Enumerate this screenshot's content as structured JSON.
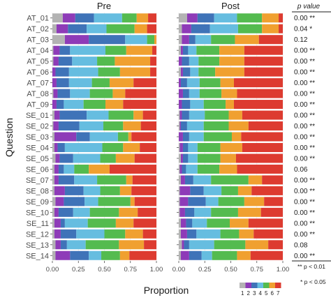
{
  "chart_data": {
    "type": "bar",
    "stacked": true,
    "orientation": "horizontal",
    "ylabel": "Question",
    "xlabel": "Proportion",
    "xlim": [
      0,
      1
    ],
    "x_ticks": [
      "0.00",
      "0.25",
      "0.50",
      "0.75",
      "1.00"
    ],
    "legend_labels": [
      "1",
      "2",
      "3",
      "4",
      "5",
      "6",
      "7"
    ],
    "colors": [
      "#b3b3b3",
      "#8e3bb8",
      "#3f73b8",
      "#66bde0",
      "#54bb4f",
      "#f0a030",
      "#dd3b30"
    ],
    "categories": [
      "AT_01",
      "AT_02",
      "AT_03",
      "AT_04",
      "AT_05",
      "AT_06",
      "AT_07",
      "AT_08",
      "AT_09",
      "SE_01",
      "SE_02",
      "SE_03",
      "SE_04",
      "SE_05",
      "SE_06",
      "SE_07",
      "SE_08",
      "SE_09",
      "SE_10",
      "SE_11",
      "SE_12",
      "SE_13",
      "SE_14"
    ],
    "panels": [
      {
        "title": "Pre",
        "rows": [
          [
            0.1,
            0.12,
            0.18,
            0.27,
            0.14,
            0.11,
            0.08
          ],
          [
            0.04,
            0.11,
            0.18,
            0.19,
            0.27,
            0.12,
            0.09
          ],
          [
            0.12,
            0.23,
            0.35,
            0.21,
            0.07,
            0.02,
            0.0
          ],
          [
            0.01,
            0.06,
            0.1,
            0.34,
            0.2,
            0.25,
            0.04
          ],
          [
            0.01,
            0.05,
            0.13,
            0.24,
            0.17,
            0.34,
            0.06
          ],
          [
            0.0,
            0.03,
            0.13,
            0.28,
            0.21,
            0.29,
            0.06
          ],
          [
            0.0,
            0.04,
            0.12,
            0.22,
            0.17,
            0.23,
            0.22
          ],
          [
            0.01,
            0.04,
            0.12,
            0.19,
            0.22,
            0.12,
            0.3
          ],
          [
            0.0,
            0.04,
            0.07,
            0.19,
            0.21,
            0.17,
            0.32
          ],
          [
            0.02,
            0.05,
            0.26,
            0.21,
            0.24,
            0.09,
            0.13
          ],
          [
            0.01,
            0.05,
            0.2,
            0.23,
            0.19,
            0.17,
            0.15
          ],
          [
            0.02,
            0.21,
            0.13,
            0.27,
            0.1,
            0.03,
            0.24
          ],
          [
            0.02,
            0.03,
            0.07,
            0.36,
            0.2,
            0.16,
            0.16
          ],
          [
            0.03,
            0.04,
            0.13,
            0.26,
            0.15,
            0.18,
            0.21
          ],
          [
            0.02,
            0.04,
            0.05,
            0.1,
            0.14,
            0.2,
            0.45
          ],
          [
            0.02,
            0.04,
            0.15,
            0.22,
            0.28,
            0.06,
            0.23
          ],
          [
            0.02,
            0.1,
            0.18,
            0.16,
            0.19,
            0.11,
            0.24
          ],
          [
            0.03,
            0.08,
            0.2,
            0.13,
            0.31,
            0.04,
            0.21
          ],
          [
            0.02,
            0.04,
            0.14,
            0.16,
            0.28,
            0.18,
            0.18
          ],
          [
            0.02,
            0.06,
            0.04,
            0.22,
            0.27,
            0.17,
            0.22
          ],
          [
            0.02,
            0.06,
            0.15,
            0.27,
            0.2,
            0.17,
            0.13
          ],
          [
            0.03,
            0.05,
            0.06,
            0.18,
            0.32,
            0.24,
            0.12
          ],
          [
            0.03,
            0.14,
            0.18,
            0.12,
            0.18,
            0.09,
            0.26
          ]
        ]
      },
      {
        "title": "Post",
        "rows": [
          [
            0.08,
            0.1,
            0.16,
            0.22,
            0.24,
            0.16,
            0.04
          ],
          [
            0.03,
            0.09,
            0.18,
            0.27,
            0.23,
            0.16,
            0.04
          ],
          [
            0.03,
            0.07,
            0.06,
            0.15,
            0.23,
            0.23,
            0.23
          ],
          [
            0.02,
            0.02,
            0.05,
            0.08,
            0.22,
            0.24,
            0.37
          ],
          [
            0.0,
            0.03,
            0.07,
            0.09,
            0.2,
            0.24,
            0.37
          ],
          [
            0.02,
            0.02,
            0.07,
            0.08,
            0.16,
            0.28,
            0.37
          ],
          [
            0.0,
            0.02,
            0.06,
            0.12,
            0.2,
            0.13,
            0.47
          ],
          [
            0.0,
            0.04,
            0.06,
            0.1,
            0.21,
            0.15,
            0.44
          ],
          [
            0.0,
            0.03,
            0.08,
            0.13,
            0.21,
            0.08,
            0.47
          ],
          [
            0.01,
            0.02,
            0.07,
            0.15,
            0.23,
            0.13,
            0.39
          ],
          [
            0.01,
            0.01,
            0.06,
            0.16,
            0.24,
            0.19,
            0.33
          ],
          [
            0.0,
            0.04,
            0.06,
            0.14,
            0.27,
            0.09,
            0.4
          ],
          [
            0.01,
            0.03,
            0.05,
            0.09,
            0.22,
            0.21,
            0.39
          ],
          [
            0.02,
            0.02,
            0.05,
            0.09,
            0.22,
            0.15,
            0.45
          ],
          [
            0.01,
            0.02,
            0.04,
            0.11,
            0.21,
            0.17,
            0.44
          ],
          [
            0.02,
            0.04,
            0.08,
            0.17,
            0.36,
            0.13,
            0.2
          ],
          [
            0.01,
            0.1,
            0.13,
            0.17,
            0.16,
            0.13,
            0.3
          ],
          [
            0.01,
            0.08,
            0.17,
            0.12,
            0.25,
            0.19,
            0.18
          ],
          [
            0.01,
            0.05,
            0.09,
            0.16,
            0.26,
            0.22,
            0.21
          ],
          [
            0.02,
            0.05,
            0.06,
            0.14,
            0.22,
            0.18,
            0.33
          ],
          [
            0.02,
            0.06,
            0.09,
            0.23,
            0.18,
            0.14,
            0.28
          ],
          [
            0.03,
            0.02,
            0.05,
            0.24,
            0.3,
            0.22,
            0.14
          ],
          [
            0.02,
            0.08,
            0.12,
            0.1,
            0.24,
            0.13,
            0.31
          ]
        ]
      }
    ],
    "p_value_header": "p value",
    "p_values": [
      "0.00 **",
      "0.04 *",
      "0.12",
      "0.00 **",
      "0.00 **",
      "0.00 **",
      "0.00 **",
      "0.00 **",
      "0.00 **",
      "0.00 **",
      "0.00 **",
      "0.00 **",
      "0.00 **",
      "0.00 **",
      "0.06",
      "0.00 **",
      "0.00 **",
      "0.00 **",
      "0.00 **",
      "0.00 **",
      "0.00 **",
      "0.08",
      "0.00 **"
    ],
    "notes": [
      "** p < 0.01",
      "* p < 0.05"
    ]
  }
}
